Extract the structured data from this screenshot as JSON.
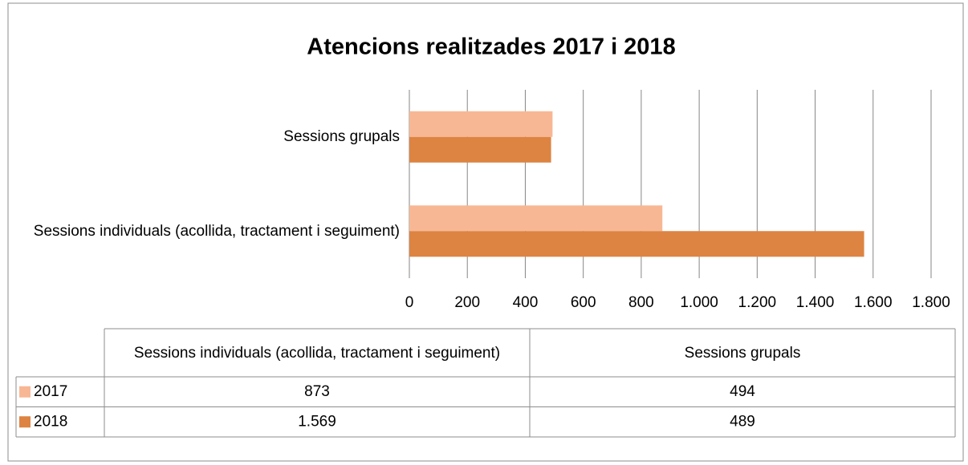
{
  "chart_data": {
    "type": "hbar",
    "title": "Atencions realitzades 2017 i 2018",
    "categories": [
      "Sessions individuals (acollida, tractament i seguiment)",
      "Sessions grupals"
    ],
    "series": [
      {
        "name": "2017",
        "color": "#f8b794",
        "values": [
          873,
          494
        ],
        "value_labels": [
          "873",
          "494"
        ]
      },
      {
        "name": "2018",
        "color": "#dd8442",
        "values": [
          1569,
          489
        ],
        "value_labels": [
          "1.569",
          "489"
        ]
      }
    ],
    "xlim": [
      0,
      1800
    ],
    "xticks": [
      0,
      200,
      400,
      600,
      800,
      {
        "value": 1000,
        "label": "1.000"
      },
      {
        "value": 1200,
        "label": "1.200"
      },
      {
        "value": 1400,
        "label": "1.400"
      },
      {
        "value": 1600,
        "label": "1.600"
      },
      {
        "value": 1800,
        "label": "1.800"
      }
    ],
    "grid": true
  }
}
